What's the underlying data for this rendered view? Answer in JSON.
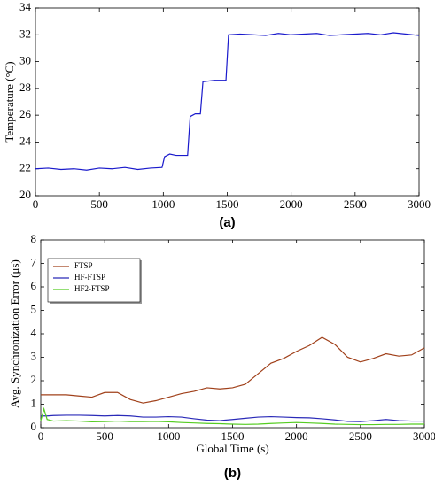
{
  "chart_data": [
    {
      "type": "line",
      "caption": "(a)",
      "ylabel": "Temperature (°C)",
      "x": [
        0,
        100,
        200,
        300,
        400,
        500,
        600,
        700,
        800,
        900,
        990,
        1010,
        1050,
        1100,
        1190,
        1210,
        1250,
        1290,
        1310,
        1400,
        1490,
        1510,
        1600,
        1700,
        1800,
        1900,
        2000,
        2100,
        2200,
        2300,
        2400,
        2500,
        2600,
        2700,
        2800,
        2900,
        3000
      ],
      "series": [
        {
          "name": null,
          "color": "#1a1acc",
          "values": [
            22.0,
            22.05,
            21.95,
            22.0,
            21.9,
            22.05,
            22.0,
            22.1,
            21.95,
            22.05,
            22.1,
            22.9,
            23.1,
            23.0,
            23.0,
            25.9,
            26.1,
            26.1,
            28.5,
            28.6,
            28.6,
            32.0,
            32.05,
            32.0,
            31.95,
            32.1,
            32.0,
            32.05,
            32.1,
            31.95,
            32.0,
            32.05,
            32.1,
            32.0,
            32.15,
            32.05,
            31.95
          ]
        }
      ],
      "xlim": [
        0,
        3000
      ],
      "xticks": [
        0,
        500,
        1000,
        1500,
        2000,
        2500,
        3000
      ],
      "ylim": [
        20,
        34
      ],
      "yticks": [
        20,
        22,
        24,
        26,
        28,
        30,
        32,
        34
      ]
    },
    {
      "type": "line",
      "caption": "(b)",
      "xlabel": "Global Time (s)",
      "ylabel": "Avg. Synchronization Error (μs)",
      "legend": "upper left",
      "x": [
        0,
        25,
        50,
        100,
        200,
        300,
        400,
        500,
        600,
        700,
        800,
        900,
        1000,
        1100,
        1200,
        1300,
        1400,
        1500,
        1600,
        1700,
        1800,
        1900,
        2000,
        2100,
        2200,
        2300,
        2400,
        2500,
        2600,
        2700,
        2800,
        2900,
        3000
      ],
      "series": [
        {
          "name": "FTSP",
          "color": "#a0401a",
          "values": [
            1.4,
            1.4,
            1.4,
            1.4,
            1.4,
            1.35,
            1.3,
            1.5,
            1.5,
            1.2,
            1.05,
            1.15,
            1.3,
            1.45,
            1.55,
            1.7,
            1.65,
            1.7,
            1.85,
            2.3,
            2.75,
            2.95,
            3.25,
            3.5,
            3.85,
            3.55,
            3.0,
            2.8,
            2.95,
            3.15,
            3.05,
            3.1,
            3.4
          ]
        },
        {
          "name": "HF-FTSP",
          "color": "#2a2ab8",
          "values": [
            0.5,
            0.5,
            0.5,
            0.52,
            0.53,
            0.53,
            0.52,
            0.5,
            0.52,
            0.5,
            0.45,
            0.45,
            0.47,
            0.45,
            0.38,
            0.32,
            0.3,
            0.35,
            0.4,
            0.45,
            0.47,
            0.45,
            0.43,
            0.42,
            0.38,
            0.33,
            0.27,
            0.26,
            0.3,
            0.35,
            0.3,
            0.28,
            0.28
          ]
        },
        {
          "name": "HF2-FTSP",
          "color": "#55cc22",
          "values": [
            0.3,
            0.8,
            0.35,
            0.28,
            0.3,
            0.28,
            0.25,
            0.26,
            0.28,
            0.26,
            0.26,
            0.27,
            0.25,
            0.22,
            0.2,
            0.18,
            0.17,
            0.15,
            0.14,
            0.15,
            0.18,
            0.2,
            0.22,
            0.2,
            0.18,
            0.15,
            0.14,
            0.13,
            0.13,
            0.14,
            0.14,
            0.15,
            0.15
          ]
        }
      ],
      "xlim": [
        0,
        3000
      ],
      "xticks": [
        0,
        500,
        1000,
        1500,
        2000,
        2500,
        3000
      ],
      "ylim": [
        0,
        8
      ],
      "yticks": [
        0,
        1,
        2,
        3,
        4,
        5,
        6,
        7,
        8
      ]
    }
  ]
}
